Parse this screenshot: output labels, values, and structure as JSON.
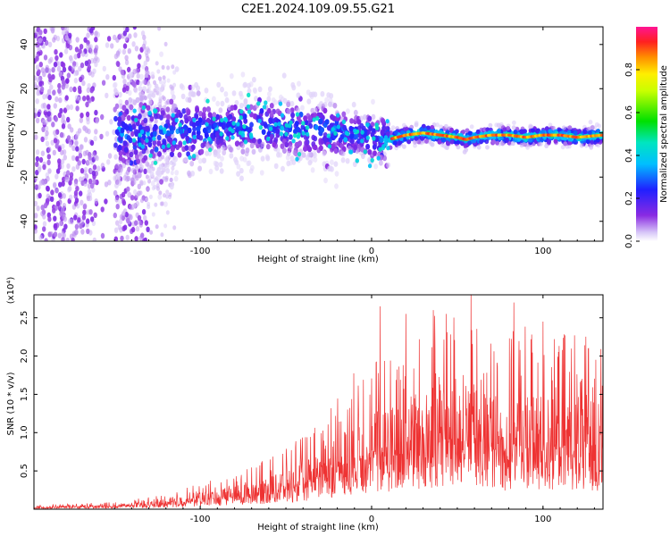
{
  "title": "C2E1.2024.109.09.55.G21",
  "chart_data": [
    {
      "type": "heatmap",
      "xlabel": "Height of straight line (km)",
      "ylabel": "Frequency (Hz)",
      "xlim": [
        -197,
        135
      ],
      "ylim": [
        -49,
        48
      ],
      "x_ticks": [
        -100,
        0,
        100
      ],
      "y_ticks": [
        -40,
        -20,
        0,
        20,
        40
      ],
      "colorbar": {
        "label": "Normalized spectral amplitude",
        "range": [
          0.0,
          1.0
        ],
        "ticks": [
          "0.0",
          "0.2",
          "0.4",
          "0.6",
          "0.8"
        ],
        "colormap": "rainbow (violet-blue-cyan-green-yellow-red-magenta)"
      },
      "ridge": {
        "x": [
          -150,
          -130,
          -110,
          -90,
          -70,
          -50,
          -30,
          -20,
          -10,
          0,
          10,
          20,
          30,
          40,
          50,
          55,
          60,
          70,
          80,
          90,
          100,
          110,
          120,
          135
        ],
        "freq": [
          -1,
          0,
          1,
          2,
          3,
          2,
          1,
          0,
          -1,
          -2,
          -3,
          -1,
          0,
          -1,
          -2,
          -3,
          -2,
          -1,
          -1,
          -2,
          -1,
          -1,
          -2,
          -1
        ]
      },
      "grid": false
    },
    {
      "type": "line",
      "xlabel": "Height of straight line (km)",
      "ylabel": "SNR (10 * v/v)",
      "y_multiplier": "(x10⁴)",
      "xlim": [
        -197,
        135
      ],
      "ylim": [
        0,
        2.8
      ],
      "x_ticks": [
        -100,
        0,
        100
      ],
      "y_ticks": [
        "0.5",
        "1.0",
        "1.5",
        "2.0",
        "2.5"
      ],
      "color": "#ee3333",
      "envelope": {
        "x": [
          -197,
          -150,
          -120,
          -100,
          -80,
          -60,
          -40,
          -30,
          -20,
          -10,
          0,
          10,
          20,
          30,
          40,
          50,
          60,
          70,
          80,
          90,
          100,
          110,
          120,
          135
        ],
        "y": [
          0.03,
          0.05,
          0.1,
          0.18,
          0.25,
          0.35,
          0.5,
          0.65,
          0.8,
          0.95,
          1.1,
          1.1,
          1.2,
          1.3,
          1.4,
          1.3,
          1.35,
          1.25,
          1.2,
          1.3,
          1.15,
          1.2,
          1.25,
          1.2
        ]
      },
      "peaks": [
        {
          "x": 5,
          "y": 2.65
        },
        {
          "x": 20,
          "y": 2.55
        },
        {
          "x": 36,
          "y": 2.6
        },
        {
          "x": 58,
          "y": 2.85
        },
        {
          "x": 83,
          "y": 2.7
        },
        {
          "x": 100,
          "y": 2.45
        }
      ],
      "grid": false
    }
  ]
}
